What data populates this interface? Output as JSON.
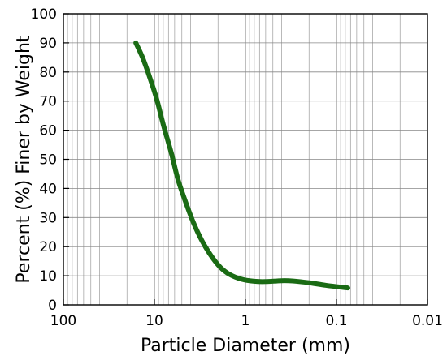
{
  "chart_data": {
    "type": "line",
    "title": "",
    "xlabel": "Particle Diameter (mm)",
    "ylabel": "Percent (%) Finer by Weight",
    "x_scale": "log",
    "x_reversed": true,
    "xlim": [
      100,
      0.01
    ],
    "ylim": [
      0,
      100
    ],
    "x_ticks": [
      100,
      10,
      1,
      0.1,
      0.01
    ],
    "x_tick_labels": [
      "100",
      "10",
      "1",
      "0.1",
      "0.01"
    ],
    "y_ticks": [
      0,
      10,
      20,
      30,
      40,
      50,
      60,
      70,
      80,
      90,
      100
    ],
    "y_tick_labels": [
      "0",
      "10",
      "20",
      "30",
      "40",
      "50",
      "60",
      "70",
      "80",
      "90",
      "100"
    ],
    "grid": true,
    "legend": "none",
    "series": [
      {
        "color": "#1a6b14",
        "points": [
          [
            16.0,
            90
          ],
          [
            13.5,
            85
          ],
          [
            11.5,
            79
          ],
          [
            9.5,
            71
          ],
          [
            8.0,
            62
          ],
          [
            6.5,
            52
          ],
          [
            5.5,
            43
          ],
          [
            4.5,
            35
          ],
          [
            3.7,
            28
          ],
          [
            3.0,
            22
          ],
          [
            2.4,
            17
          ],
          [
            1.9,
            13
          ],
          [
            1.5,
            10.5
          ],
          [
            1.1,
            8.8
          ],
          [
            0.8,
            8.1
          ],
          [
            0.6,
            8.0
          ],
          [
            0.4,
            8.3
          ],
          [
            0.3,
            8.2
          ],
          [
            0.2,
            7.6
          ],
          [
            0.13,
            6.7
          ],
          [
            0.075,
            5.8
          ]
        ]
      }
    ]
  }
}
